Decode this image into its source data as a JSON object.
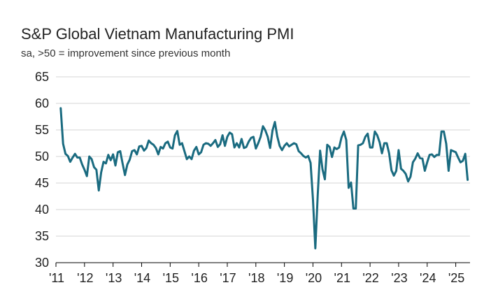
{
  "chart_data": {
    "type": "line",
    "title": "S&P Global Vietnam Manufacturing PMI",
    "subtitle": "sa, >50 = improvement since previous month",
    "xlabel": "",
    "ylabel": "",
    "xlim": [
      2011.0,
      2025.5
    ],
    "ylim": [
      30,
      65
    ],
    "yticks": [
      30,
      35,
      40,
      45,
      50,
      55,
      60,
      65
    ],
    "xticks": [
      {
        "value": 2011,
        "label": "'11"
      },
      {
        "value": 2012,
        "label": "'12"
      },
      {
        "value": 2013,
        "label": "'13"
      },
      {
        "value": 2014,
        "label": "'14"
      },
      {
        "value": 2015,
        "label": "'15"
      },
      {
        "value": 2016,
        "label": "'16"
      },
      {
        "value": 2017,
        "label": "'17"
      },
      {
        "value": 2018,
        "label": "'18"
      },
      {
        "value": 2019,
        "label": "'19"
      },
      {
        "value": 2020,
        "label": "'20"
      },
      {
        "value": 2021,
        "label": "'21"
      },
      {
        "value": 2022,
        "label": "'22"
      },
      {
        "value": 2023,
        "label": "'23"
      },
      {
        "value": 2024,
        "label": "'24"
      },
      {
        "value": 2025,
        "label": "'25"
      }
    ],
    "grid": true,
    "legend": "none",
    "line_color": "#1a6b80",
    "series": [
      {
        "start": "2011-03",
        "frequency": "monthly",
        "values": [
          59.1,
          52.4,
          50.5,
          50.1,
          49.0,
          49.8,
          50.5,
          49.8,
          49.8,
          48.5,
          47.5,
          46.3,
          50.0,
          49.5,
          48.0,
          47.5,
          43.6,
          47.0,
          49.0,
          48.7,
          50.3,
          49.3,
          50.4,
          48.3,
          50.8,
          51.0,
          48.7,
          46.5,
          48.5,
          49.4,
          51.0,
          51.2,
          50.4,
          51.9,
          52.0,
          51.1,
          51.6,
          53.0,
          52.5,
          52.2,
          51.6,
          50.4,
          51.8,
          51.5,
          52.5,
          52.8,
          51.7,
          51.5,
          54.0,
          54.8,
          52.2,
          52.5,
          51.0,
          49.5,
          50.0,
          49.5,
          51.1,
          51.8,
          50.4,
          50.8,
          52.2,
          52.5,
          52.4,
          52.0,
          52.5,
          53.1,
          51.8,
          52.3,
          54.0,
          52.0,
          53.7,
          54.5,
          54.2,
          51.7,
          52.5,
          51.7,
          53.3,
          51.6,
          51.8,
          52.8,
          53.5,
          53.7,
          51.5,
          52.5,
          53.7,
          55.7,
          54.9,
          53.7,
          51.6,
          54.9,
          56.5,
          53.8,
          52.0,
          51.2,
          52.0,
          52.5,
          51.9,
          52.2,
          52.5,
          52.3,
          51.0,
          50.6,
          50.1,
          49.8,
          50.1,
          48.8,
          41.9,
          32.7,
          42.7,
          51.1,
          47.6,
          45.7,
          52.2,
          51.8,
          49.9,
          51.7,
          51.4,
          51.7,
          53.6,
          54.7,
          53.1,
          44.1,
          45.1,
          40.2,
          40.2,
          52.1,
          52.2,
          52.5,
          53.7,
          54.3,
          51.7,
          51.7,
          54.7,
          54.0,
          52.7,
          50.6,
          52.5,
          52.5,
          50.6,
          47.4,
          46.4,
          47.3,
          51.2,
          47.7,
          47.3,
          46.7,
          45.3,
          46.2,
          48.9,
          49.6,
          50.6,
          49.7,
          49.6,
          47.3,
          48.9,
          50.3,
          50.4,
          49.9,
          50.3,
          50.3,
          54.7,
          54.7,
          52.4,
          47.3,
          51.2,
          51.0,
          50.8,
          49.8,
          48.9,
          49.2,
          50.5,
          45.6
        ]
      }
    ]
  }
}
